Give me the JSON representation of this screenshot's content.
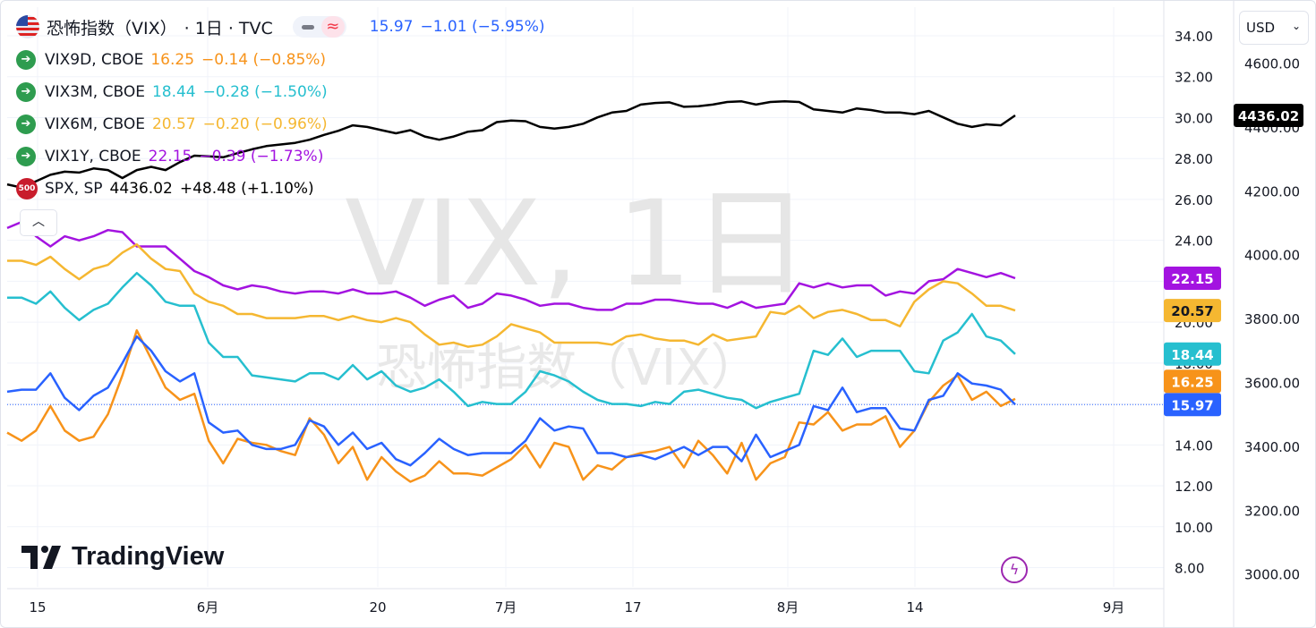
{
  "main": {
    "title": "恐怖指数（VIX）",
    "interval": "· 1日 · TVC",
    "price": "15.97",
    "change": "−1.01 (−5.95%)"
  },
  "watermark": {
    "line1": "VIX, 1日",
    "line2": "恐怖指数（VIX）"
  },
  "legend": [
    {
      "symbol": "VIX9D, CBOE",
      "value": "16.25",
      "change": "−0.14 (−0.85%)",
      "color": "#f7931a"
    },
    {
      "symbol": "VIX3M, CBOE",
      "value": "18.44",
      "change": "−0.28 (−1.50%)",
      "color": "#26bfcf"
    },
    {
      "symbol": "VIX6M, CBOE",
      "value": "20.57",
      "change": "−0.20 (−0.96%)",
      "color": "#f5b731"
    },
    {
      "symbol": "VIX1Y, CBOE",
      "value": "22.15",
      "change": "−0.39 (−1.73%)",
      "color": "#a313e0"
    },
    {
      "symbol": "SPX, SP",
      "value": "4436.02",
      "change": "+48.48 (+1.10%)",
      "color": "#000000",
      "badge": "500"
    }
  ],
  "currency": "USD",
  "logo_text": "TradingView",
  "chart_data": {
    "type": "line",
    "x_ticks": [
      "15",
      "6月",
      "20",
      "7月",
      "17",
      "8月",
      "14",
      "9月"
    ],
    "y_left_ticks": [
      "34.00",
      "32.00",
      "30.00",
      "28.00",
      "26.00",
      "24.00",
      "22.00",
      "20.00",
      "18.00",
      "16.00",
      "14.00",
      "12.00",
      "10.00",
      "8.00"
    ],
    "y_right_ticks": [
      "4600.00",
      "4400.00",
      "4200.00",
      "4000.00",
      "3800.00",
      "3600.00",
      "3400.00",
      "3200.00",
      "3000.00"
    ],
    "ylim_left": [
      7.06,
      35.4
    ],
    "ylim_right": [
      2960,
      4775
    ],
    "series": [
      {
        "name": "VIX",
        "color": "#2962ff",
        "axis": "left",
        "last_label": "15.97",
        "values": [
          16.6,
          16.7,
          16.7,
          17.5,
          16.3,
          15.7,
          16.4,
          16.8,
          18.0,
          19.3,
          18.6,
          17.6,
          17.1,
          17.5,
          15.1,
          14.6,
          14.7,
          14.0,
          13.8,
          13.8,
          14.0,
          15.2,
          14.9,
          14.0,
          14.6,
          13.8,
          14.1,
          13.3,
          13.0,
          13.6,
          14.3,
          13.8,
          13.5,
          13.6,
          13.6,
          13.6,
          14.2,
          15.3,
          14.7,
          14.9,
          14.8,
          13.6,
          13.6,
          13.4,
          13.5,
          13.3,
          13.6,
          13.9,
          13.5,
          13.9,
          13.9,
          13.2,
          14.5,
          13.4,
          13.7,
          14.0,
          15.9,
          15.7,
          16.8,
          15.6,
          15.8,
          15.8,
          14.8,
          14.7,
          16.2,
          16.4,
          17.5,
          17.0,
          16.9,
          16.7,
          15.97
        ]
      },
      {
        "name": "VIX9D",
        "color": "#f7931a",
        "axis": "left",
        "last_label": "16.25",
        "values": [
          14.6,
          14.2,
          14.7,
          15.9,
          14.7,
          14.2,
          14.4,
          15.5,
          17.4,
          19.6,
          18.2,
          16.8,
          16.2,
          16.5,
          14.2,
          13.1,
          14.3,
          14.1,
          14.0,
          13.7,
          13.5,
          15.3,
          14.5,
          13.1,
          13.9,
          12.3,
          13.4,
          12.7,
          12.2,
          12.5,
          13.2,
          12.6,
          12.6,
          12.5,
          12.9,
          13.3,
          14.0,
          12.9,
          14.1,
          13.9,
          12.3,
          13.0,
          12.8,
          13.4,
          13.6,
          13.7,
          13.9,
          12.9,
          14.2,
          13.5,
          12.6,
          14.1,
          12.3,
          13.1,
          13.4,
          15.1,
          15.0,
          15.6,
          14.7,
          15.0,
          15.0,
          15.4,
          13.9,
          14.7,
          16.1,
          16.9,
          17.4,
          16.2,
          16.6,
          15.9,
          16.25
        ]
      },
      {
        "name": "VIX3M",
        "color": "#26bfcf",
        "axis": "left",
        "last_label": "18.44",
        "values": [
          21.2,
          21.2,
          20.9,
          21.5,
          20.7,
          20.1,
          20.6,
          20.9,
          21.7,
          22.4,
          21.8,
          21.0,
          20.8,
          20.8,
          19.0,
          18.3,
          18.3,
          17.4,
          17.3,
          17.2,
          17.1,
          17.5,
          17.5,
          17.2,
          17.9,
          17.2,
          17.6,
          16.9,
          16.6,
          16.8,
          17.2,
          16.6,
          15.9,
          16.1,
          16.0,
          16.0,
          16.6,
          17.6,
          17.4,
          17.1,
          16.6,
          16.2,
          16.0,
          16.0,
          15.9,
          16.1,
          16.0,
          16.6,
          16.7,
          16.5,
          16.3,
          16.2,
          15.8,
          16.1,
          16.3,
          16.5,
          18.6,
          18.4,
          19.2,
          18.3,
          18.6,
          18.6,
          18.6,
          17.6,
          17.5,
          19.1,
          19.5,
          20.4,
          19.3,
          19.1,
          18.44
        ]
      },
      {
        "name": "VIX6M",
        "color": "#f5b731",
        "axis": "left",
        "last_label": "20.57",
        "values": [
          23.0,
          23.0,
          22.8,
          23.2,
          22.6,
          22.1,
          22.6,
          22.8,
          23.4,
          23.8,
          23.1,
          22.6,
          22.5,
          21.4,
          21.0,
          20.8,
          20.4,
          20.4,
          20.2,
          20.2,
          20.2,
          20.3,
          20.3,
          20.1,
          20.3,
          20.1,
          20.0,
          20.2,
          20.0,
          19.4,
          18.9,
          19.0,
          18.8,
          18.9,
          19.3,
          19.9,
          19.7,
          19.5,
          19.0,
          19.0,
          19.0,
          19.0,
          18.9,
          19.3,
          19.4,
          19.2,
          19.1,
          19.1,
          18.9,
          19.4,
          19.1,
          19.2,
          19.3,
          20.5,
          20.4,
          20.8,
          20.2,
          20.5,
          20.6,
          20.4,
          20.1,
          20.1,
          19.8,
          21.0,
          21.6,
          22.0,
          21.9,
          21.4,
          20.8,
          20.8,
          20.57
        ]
      },
      {
        "name": "VIX1Y",
        "color": "#a313e0",
        "axis": "left",
        "last_label": "22.15",
        "values": [
          24.6,
          24.9,
          24.2,
          23.7,
          24.2,
          24.0,
          24.2,
          24.5,
          24.4,
          23.7,
          23.7,
          23.7,
          23.1,
          22.5,
          22.2,
          21.8,
          21.6,
          21.8,
          21.7,
          21.5,
          21.4,
          21.5,
          21.5,
          21.4,
          21.6,
          21.4,
          21.4,
          21.5,
          21.2,
          20.8,
          21.1,
          21.3,
          20.7,
          20.9,
          21.4,
          21.3,
          21.1,
          20.8,
          20.9,
          20.9,
          20.7,
          20.6,
          20.6,
          20.9,
          20.9,
          21.1,
          21.1,
          21.0,
          20.9,
          20.9,
          20.7,
          21.0,
          20.7,
          20.8,
          20.9,
          21.9,
          21.7,
          21.9,
          21.7,
          21.8,
          21.8,
          21.3,
          21.5,
          21.4,
          22.0,
          22.1,
          22.6,
          22.4,
          22.2,
          22.4,
          22.15
        ]
      },
      {
        "name": "SPX",
        "color": "#000000",
        "axis": "right",
        "last_label": "4436.02",
        "values": [
          4220,
          4210,
          4230,
          4250,
          4260,
          4257,
          4270,
          4265,
          4240,
          4265,
          4275,
          4265,
          4290,
          4310,
          4308,
          4305,
          4318,
          4330,
          4340,
          4345,
          4350,
          4360,
          4375,
          4388,
          4405,
          4400,
          4390,
          4380,
          4390,
          4370,
          4360,
          4370,
          4385,
          4390,
          4415,
          4420,
          4418,
          4400,
          4395,
          4400,
          4410,
          4430,
          4445,
          4450,
          4470,
          4475,
          4477,
          4463,
          4465,
          4470,
          4478,
          4480,
          4470,
          4478,
          4480,
          4478,
          4455,
          4450,
          4445,
          4458,
          4453,
          4445,
          4445,
          4440,
          4450,
          4430,
          4410,
          4400,
          4408,
          4405,
          4436.02
        ]
      }
    ]
  }
}
